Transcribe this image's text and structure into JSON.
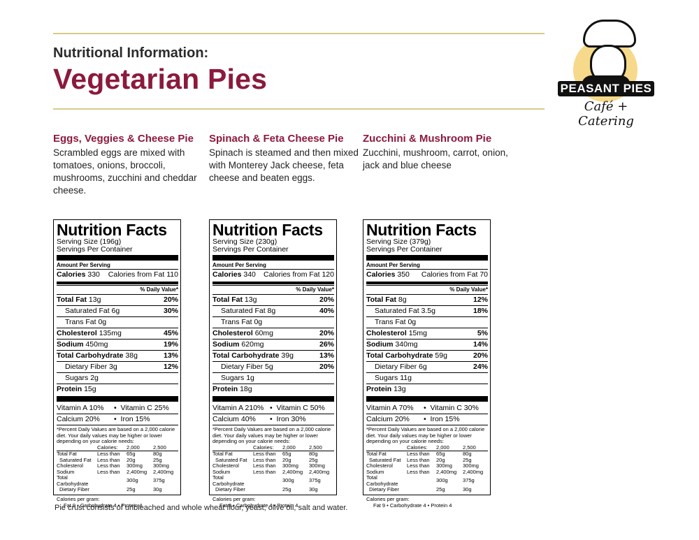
{
  "header": {
    "subtitle": "Nutritional Information:",
    "title": "Vegetarian Pies"
  },
  "logo": {
    "name": "PEASANT PIES",
    "tagline": "Café + Catering"
  },
  "pies": [
    {
      "name": "Eggs, Veggies & Cheese Pie",
      "description": "Scrambled eggs are mixed with tomatoes, onions, broccoli, mushrooms, zucchini and cheddar cheese.",
      "nf": {
        "serving_size": "(196g)",
        "calories": "330",
        "calories_fat": "110",
        "total_fat": "13g",
        "total_fat_dv": "20%",
        "sat_fat": "6g",
        "sat_fat_dv": "30%",
        "trans_fat": "0g",
        "cholesterol": "135mg",
        "cholesterol_dv": "45%",
        "sodium": "450mg",
        "sodium_dv": "19%",
        "carb": "38g",
        "carb_dv": "13%",
        "fiber": "3g",
        "fiber_dv": "12%",
        "sugars": "2g",
        "protein": "15g",
        "vit_a": "10%",
        "vit_c": "25%",
        "calcium": "20%",
        "iron": "15%"
      }
    },
    {
      "name": "Spinach & Feta Cheese Pie",
      "description": "Spinach is steamed and then mixed with Monterey Jack cheese, feta cheese and beaten eggs.",
      "nf": {
        "serving_size": "(230g)",
        "calories": "340",
        "calories_fat": "120",
        "total_fat": "13g",
        "total_fat_dv": "20%",
        "sat_fat": "8g",
        "sat_fat_dv": "40%",
        "trans_fat": "0g",
        "cholesterol": "60mg",
        "cholesterol_dv": "20%",
        "sodium": "620mg",
        "sodium_dv": "26%",
        "carb": "39g",
        "carb_dv": "13%",
        "fiber": "5g",
        "fiber_dv": "20%",
        "sugars": "1g",
        "protein": "18g",
        "vit_a": "210%",
        "vit_c": "50%",
        "calcium": "40%",
        "iron": "30%"
      }
    },
    {
      "name": "Zucchini & Mushroom Pie",
      "description": "Zucchini, mushroom, carrot, onion, jack and blue cheese",
      "nf": {
        "serving_size": "(379g)",
        "calories": "350",
        "calories_fat": "70",
        "total_fat": "8g",
        "total_fat_dv": "12%",
        "sat_fat": "3.5g",
        "sat_fat_dv": "18%",
        "trans_fat": "0g",
        "cholesterol": "15mg",
        "cholesterol_dv": "5%",
        "sodium": "340mg",
        "sodium_dv": "14%",
        "carb": "59g",
        "carb_dv": "20%",
        "fiber": "6g",
        "fiber_dv": "24%",
        "sugars": "11g",
        "protein": "13g",
        "vit_a": "70%",
        "vit_c": "30%",
        "calcium": "20%",
        "iron": "15%"
      }
    }
  ],
  "labels": {
    "nf_title": "Nutrition Facts",
    "serving_size": "Serving Size",
    "servings_per_container": "Servings Per Container",
    "amount_per_serving": "Amount Per Serving",
    "calories": "Calories",
    "calories_from_fat": "Calories from Fat",
    "daily_value": "% Daily Value*",
    "total_fat": "Total Fat",
    "saturated_fat": "Saturated Fat",
    "trans_fat": "Trans Fat",
    "cholesterol": "Cholesterol",
    "sodium": "Sodium",
    "total_carbohydrate": "Total Carbohydrate",
    "dietary_fiber": "Dietary Fiber",
    "sugars": "Sugars",
    "protein": "Protein",
    "vitamin_a": "Vitamin A",
    "vitamin_c": "Vitamin C",
    "calcium": "Calcium",
    "iron": "Iron",
    "bullet": "•",
    "footnote": "*Percent Daily Values are based on a 2,000 calorie diet. Your daily values may be higher or lower depending on your calorie needs:"
  },
  "dv_table": {
    "header": [
      "",
      "Calories:",
      "2,000",
      "2,500"
    ],
    "rows": [
      [
        "Total Fat",
        "Less than",
        "65g",
        "80g"
      ],
      [
        "Saturated Fat",
        "Less than",
        "20g",
        "25g"
      ],
      [
        "Cholesterol",
        "Less than",
        "300mg",
        "300mg"
      ],
      [
        "Sodium",
        "Less than",
        "2,400mg",
        "2,400mg"
      ],
      [
        "Total Carbohydrate",
        "",
        "300g",
        "375g"
      ],
      [
        "Dietary Fiber",
        "",
        "25g",
        "30g"
      ]
    ],
    "cal_per_gram_title": "Calories per gram:",
    "cal_per_gram": "Fat 9   •   Carbohydrate 4   •   Protein 4"
  },
  "footer": "Pie crust consists of unbleached and whole wheat flour, yeast, olive oil, salt and water."
}
